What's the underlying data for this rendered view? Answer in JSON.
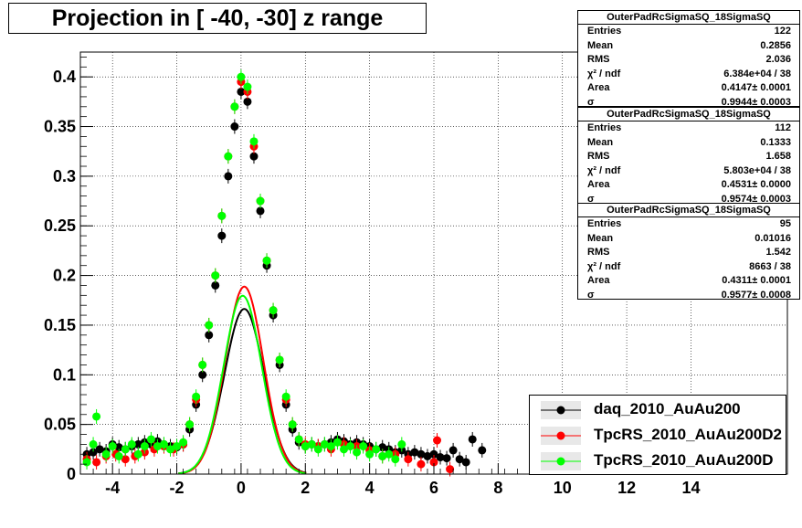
{
  "title": "Projection in [ -40, -30] z range",
  "colors": {
    "series0": "#000000",
    "series1": "#ff0000",
    "series2": "#00ff00"
  },
  "stats_boxes": [
    {
      "name": "OuterPadRcSigmaSQ_18SigmaSQ",
      "rows": [
        {
          "label": "Entries",
          "value": "122"
        },
        {
          "label": "Mean",
          "value": "0.2856"
        },
        {
          "label": "RMS",
          "value": "2.036"
        },
        {
          "label": "χ² / ndf",
          "value": "6.384e+04 / 38"
        },
        {
          "label": "Area",
          "value": "0.4147± 0.0001"
        },
        {
          "label": "σ",
          "value": "0.9944± 0.0003"
        }
      ]
    },
    {
      "name": "OuterPadRcSigmaSQ_18SigmaSQ",
      "rows": [
        {
          "label": "Entries",
          "value": "112"
        },
        {
          "label": "Mean",
          "value": "0.1333"
        },
        {
          "label": "RMS",
          "value": "1.658"
        },
        {
          "label": "χ² / ndf",
          "value": "5.803e+04 / 38"
        },
        {
          "label": "Area",
          "value": "0.4531± 0.0000"
        },
        {
          "label": "σ",
          "value": "0.9574± 0.0003"
        }
      ]
    },
    {
      "name": "OuterPadRcSigmaSQ_18SigmaSQ",
      "rows": [
        {
          "label": "Entries",
          "value": "95"
        },
        {
          "label": "Mean",
          "value": "0.01016"
        },
        {
          "label": "RMS",
          "value": "1.542"
        },
        {
          "label": "χ² / ndf",
          "value": "8663 / 38"
        },
        {
          "label": "Area",
          "value": "0.4311± 0.0001"
        },
        {
          "label": "σ",
          "value": "0.9577± 0.0008"
        }
      ]
    }
  ],
  "legend": [
    "daq_2010_AuAu200",
    "TpcRS_2010_AuAu200D2",
    "TpcRS_2010_AuAu200D"
  ],
  "chart_data": {
    "type": "scatter",
    "title": "Projection in [ -40, -30] z range",
    "xlabel": "",
    "ylabel": "",
    "xlim": [
      -5,
      17
    ],
    "ylim": [
      0,
      0.425
    ],
    "x_ticks": [
      -4,
      -2,
      0,
      2,
      4,
      6,
      8,
      10,
      12,
      14
    ],
    "y_ticks": [
      0,
      0.05,
      0.1,
      0.15,
      0.2,
      0.25,
      0.3,
      0.35,
      0.4
    ],
    "y_tick_labels": [
      "0",
      "0.05",
      "0.1",
      "0.15",
      "0.2",
      "0.25",
      "0.3",
      "0.35",
      "0.4"
    ],
    "grid": true,
    "legend_position": "bottom-right",
    "series": [
      {
        "name": "daq_2010_AuAu200",
        "points": [
          [
            -4.8,
            0.02
          ],
          [
            -4.6,
            0.022
          ],
          [
            -4.4,
            0.025
          ],
          [
            -4.2,
            0.023
          ],
          [
            -4.0,
            0.03
          ],
          [
            -3.8,
            0.027
          ],
          [
            -3.6,
            0.025
          ],
          [
            -3.4,
            0.028
          ],
          [
            -3.2,
            0.03
          ],
          [
            -3.0,
            0.032
          ],
          [
            -2.8,
            0.03
          ],
          [
            -2.6,
            0.033
          ],
          [
            -2.4,
            0.03
          ],
          [
            -2.2,
            0.028
          ],
          [
            -2.0,
            0.027
          ],
          [
            -1.8,
            0.03
          ],
          [
            -1.6,
            0.045
          ],
          [
            -1.4,
            0.07
          ],
          [
            -1.2,
            0.1
          ],
          [
            -1.0,
            0.14
          ],
          [
            -0.8,
            0.19
          ],
          [
            -0.6,
            0.24
          ],
          [
            -0.4,
            0.3
          ],
          [
            -0.2,
            0.35
          ],
          [
            0.0,
            0.385
          ],
          [
            0.2,
            0.375
          ],
          [
            0.4,
            0.32
          ],
          [
            0.6,
            0.265
          ],
          [
            0.8,
            0.21
          ],
          [
            1.0,
            0.16
          ],
          [
            1.2,
            0.11
          ],
          [
            1.4,
            0.07
          ],
          [
            1.6,
            0.045
          ],
          [
            1.8,
            0.032
          ],
          [
            2.0,
            0.028
          ],
          [
            2.2,
            0.03
          ],
          [
            2.4,
            0.028
          ],
          [
            2.6,
            0.03
          ],
          [
            2.8,
            0.032
          ],
          [
            3.0,
            0.035
          ],
          [
            3.2,
            0.033
          ],
          [
            3.4,
            0.03
          ],
          [
            3.6,
            0.032
          ],
          [
            3.8,
            0.03
          ],
          [
            4.0,
            0.028
          ],
          [
            4.2,
            0.025
          ],
          [
            4.4,
            0.027
          ],
          [
            4.6,
            0.025
          ],
          [
            4.8,
            0.022
          ],
          [
            5.0,
            0.024
          ],
          [
            5.2,
            0.02
          ],
          [
            5.4,
            0.022
          ],
          [
            5.6,
            0.02
          ],
          [
            5.8,
            0.018
          ],
          [
            6.0,
            0.02
          ],
          [
            6.2,
            0.017
          ],
          [
            6.4,
            0.016
          ],
          [
            6.6,
            0.024
          ],
          [
            6.8,
            0.015
          ],
          [
            7.0,
            0.012
          ],
          [
            7.2,
            0.035
          ],
          [
            7.5,
            0.024
          ]
        ]
      },
      {
        "name": "TpcRS_2010_AuAu200D2",
        "points": [
          [
            -4.8,
            0.015
          ],
          [
            -4.5,
            0.012
          ],
          [
            -4.2,
            0.018
          ],
          [
            -3.9,
            0.02
          ],
          [
            -3.6,
            0.015
          ],
          [
            -3.3,
            0.018
          ],
          [
            -3.0,
            0.022
          ],
          [
            -2.7,
            0.025
          ],
          [
            -2.4,
            0.028
          ],
          [
            -2.1,
            0.025
          ],
          [
            -1.8,
            0.03
          ],
          [
            -1.6,
            0.05
          ],
          [
            -1.4,
            0.075
          ],
          [
            -1.2,
            0.11
          ],
          [
            -1.0,
            0.15
          ],
          [
            -0.8,
            0.2
          ],
          [
            -0.6,
            0.26
          ],
          [
            -0.4,
            0.32
          ],
          [
            -0.2,
            0.37
          ],
          [
            0.0,
            0.395
          ],
          [
            0.2,
            0.385
          ],
          [
            0.4,
            0.33
          ],
          [
            0.6,
            0.275
          ],
          [
            0.8,
            0.215
          ],
          [
            1.0,
            0.165
          ],
          [
            1.2,
            0.115
          ],
          [
            1.4,
            0.075
          ],
          [
            1.6,
            0.05
          ],
          [
            1.8,
            0.035
          ],
          [
            2.0,
            0.03
          ],
          [
            2.4,
            0.028
          ],
          [
            2.8,
            0.025
          ],
          [
            3.2,
            0.03
          ],
          [
            3.6,
            0.028
          ],
          [
            4.0,
            0.024
          ],
          [
            4.4,
            0.018
          ],
          [
            4.8,
            0.02
          ],
          [
            5.2,
            0.015
          ],
          [
            5.6,
            0.01
          ],
          [
            6.0,
            0.012
          ],
          [
            6.1,
            0.034
          ],
          [
            6.5,
            0.005
          ]
        ]
      },
      {
        "name": "TpcRS_2010_AuAu200D",
        "points": [
          [
            -4.8,
            0.012
          ],
          [
            -4.6,
            0.03
          ],
          [
            -4.5,
            0.058
          ],
          [
            -4.2,
            0.02
          ],
          [
            -4.0,
            0.028
          ],
          [
            -3.8,
            0.018
          ],
          [
            -3.6,
            0.025
          ],
          [
            -3.4,
            0.03
          ],
          [
            -3.2,
            0.02
          ],
          [
            -3.0,
            0.028
          ],
          [
            -2.8,
            0.035
          ],
          [
            -2.6,
            0.028
          ],
          [
            -2.4,
            0.03
          ],
          [
            -2.2,
            0.025
          ],
          [
            -2.0,
            0.028
          ],
          [
            -1.8,
            0.032
          ],
          [
            -1.6,
            0.05
          ],
          [
            -1.4,
            0.078
          ],
          [
            -1.2,
            0.11
          ],
          [
            -1.0,
            0.15
          ],
          [
            -0.8,
            0.2
          ],
          [
            -0.6,
            0.26
          ],
          [
            -0.4,
            0.32
          ],
          [
            -0.2,
            0.37
          ],
          [
            0.0,
            0.4
          ],
          [
            0.2,
            0.39
          ],
          [
            0.4,
            0.335
          ],
          [
            0.6,
            0.275
          ],
          [
            0.8,
            0.215
          ],
          [
            1.0,
            0.165
          ],
          [
            1.2,
            0.115
          ],
          [
            1.4,
            0.078
          ],
          [
            1.6,
            0.05
          ],
          [
            1.8,
            0.035
          ],
          [
            2.0,
            0.028
          ],
          [
            2.2,
            0.03
          ],
          [
            2.4,
            0.025
          ],
          [
            2.6,
            0.03
          ],
          [
            2.8,
            0.028
          ],
          [
            3.0,
            0.032
          ],
          [
            3.2,
            0.025
          ],
          [
            3.4,
            0.028
          ],
          [
            3.6,
            0.022
          ],
          [
            3.8,
            0.028
          ],
          [
            4.0,
            0.02
          ],
          [
            4.2,
            0.025
          ],
          [
            4.4,
            0.018
          ],
          [
            4.6,
            0.02
          ],
          [
            4.8,
            0.015
          ],
          [
            5.0,
            0.03
          ]
        ]
      }
    ],
    "fits": [
      {
        "series": "daq_2010_AuAu200",
        "area": 0.4147,
        "sigma": 0.9944,
        "peak_x": 0.1
      },
      {
        "series": "TpcRS_2010_AuAu200D2",
        "area": 0.4531,
        "sigma": 0.9574,
        "peak_x": 0.1
      },
      {
        "series": "TpcRS_2010_AuAu200D",
        "area": 0.4311,
        "sigma": 0.9577,
        "peak_x": 0.05
      }
    ]
  }
}
